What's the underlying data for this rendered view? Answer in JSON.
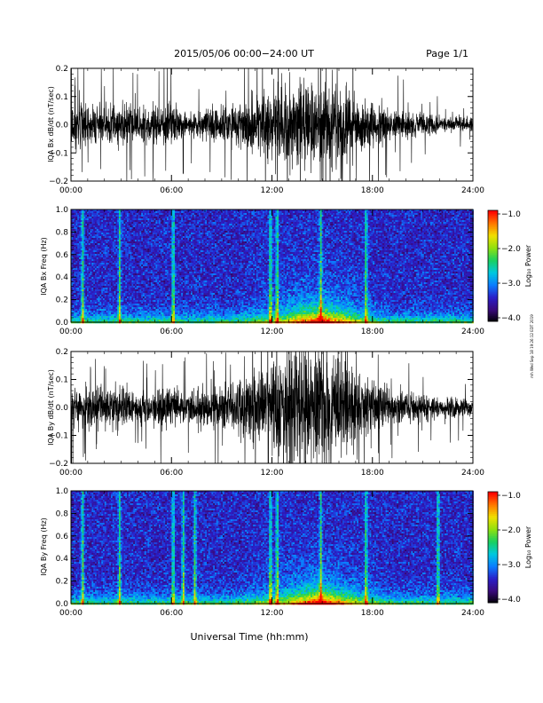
{
  "header": {
    "title": "2015/05/06  00:00−24:00 UT",
    "page": "Page 1/1"
  },
  "footer": {
    "xlabel": "Universal Time (hh:mm)",
    "side_stamp": "mh Wed Sep 18 19:26:12 EDT 2019"
  },
  "x_ticks": [
    "00:00",
    "06:00",
    "12:00",
    "18:00",
    "24:00"
  ],
  "colors": {
    "trace": "#000000",
    "spectrogram_scale": [
      "#000000",
      "#3a0a7a",
      "#2a1ec8",
      "#0a7cff",
      "#00c8e0",
      "#18d060",
      "#8ee010",
      "#f0e000",
      "#ff7800",
      "#ff0000"
    ]
  },
  "chart_data": [
    {
      "type": "line",
      "title": "",
      "xlabel": "",
      "ylabel": "IQA Bx dB/dt (nT/sec)",
      "xlim": [
        0,
        24
      ],
      "ylim": [
        -0.2,
        0.2
      ],
      "y_ticks": [
        "0.2",
        "0.1",
        "0.0",
        "−0.1",
        "−0.2"
      ],
      "x_ticks": [
        "00:00",
        "06:00",
        "12:00",
        "18:00",
        "24:00"
      ],
      "envelope_hours": [
        0,
        1,
        2,
        3,
        4,
        5,
        6,
        7,
        8,
        9,
        10,
        11,
        12,
        13,
        14,
        15,
        16,
        17,
        18,
        19,
        20,
        21,
        22,
        23,
        24
      ],
      "envelope_amplitude": [
        0.12,
        0.09,
        0.07,
        0.1,
        0.07,
        0.08,
        0.1,
        0.05,
        0.06,
        0.08,
        0.1,
        0.13,
        0.15,
        0.19,
        0.22,
        0.22,
        0.18,
        0.14,
        0.1,
        0.07,
        0.06,
        0.05,
        0.04,
        0.03,
        0.03
      ]
    },
    {
      "type": "heatmap",
      "title": "",
      "xlabel": "",
      "ylabel": "IQA Bx Freq (Hz)",
      "xlim": [
        0,
        24
      ],
      "ylim": [
        0,
        1
      ],
      "y_ticks": [
        "1.0",
        "0.8",
        "0.6",
        "0.4",
        "0.2",
        "0.0"
      ],
      "x_ticks": [
        "00:00",
        "06:00",
        "12:00",
        "18:00",
        "24:00"
      ],
      "colorbar": {
        "label": "Log₁₀ Power",
        "ticks": [
          "−1.0",
          "−2.0",
          "−3.0",
          "−4.0"
        ],
        "range": [
          -4,
          -1
        ]
      },
      "features": {
        "vertical_streaks_hours": [
          0.7,
          2.9,
          6.1,
          11.9,
          12.3,
          14.9,
          17.6
        ],
        "broadband_peak_hours": [
          12,
          17
        ],
        "low_freq_peak_hours": [
          14,
          16
        ]
      }
    },
    {
      "type": "line",
      "title": "",
      "xlabel": "",
      "ylabel": "IQA By dB/dt (nT/sec)",
      "xlim": [
        0,
        24
      ],
      "ylim": [
        -0.2,
        0.2
      ],
      "y_ticks": [
        "0.2",
        "0.1",
        "0.0",
        "−0.1",
        "−0.2"
      ],
      "x_ticks": [
        "00:00",
        "06:00",
        "12:00",
        "18:00",
        "24:00"
      ],
      "envelope_hours": [
        0,
        1,
        2,
        3,
        4,
        5,
        6,
        7,
        8,
        9,
        10,
        11,
        12,
        13,
        14,
        15,
        16,
        17,
        18,
        19,
        20,
        21,
        22,
        23,
        24
      ],
      "envelope_amplitude": [
        0.1,
        0.09,
        0.08,
        0.1,
        0.07,
        0.08,
        0.1,
        0.07,
        0.08,
        0.09,
        0.12,
        0.16,
        0.2,
        0.25,
        0.28,
        0.26,
        0.22,
        0.16,
        0.11,
        0.08,
        0.07,
        0.06,
        0.05,
        0.05,
        0.04
      ]
    },
    {
      "type": "heatmap",
      "title": "",
      "xlabel": "Universal Time (hh:mm)",
      "ylabel": "IQA By Freq (Hz)",
      "xlim": [
        0,
        24
      ],
      "ylim": [
        0,
        1
      ],
      "y_ticks": [
        "1.0",
        "0.8",
        "0.6",
        "0.4",
        "0.2",
        "0.0"
      ],
      "x_ticks": [
        "00:00",
        "06:00",
        "12:00",
        "18:00",
        "24:00"
      ],
      "colorbar": {
        "label": "Log₁₀ Power",
        "ticks": [
          "−1.0",
          "−2.0",
          "−3.0",
          "−4.0"
        ],
        "range": [
          -4,
          -1
        ]
      },
      "features": {
        "vertical_streaks_hours": [
          0.7,
          2.9,
          6.1,
          6.7,
          7.4,
          11.9,
          12.3,
          14.9,
          17.6,
          21.9
        ],
        "broadband_peak_hours": [
          12,
          17
        ],
        "low_freq_peak_hours": [
          14,
          16
        ]
      }
    }
  ]
}
